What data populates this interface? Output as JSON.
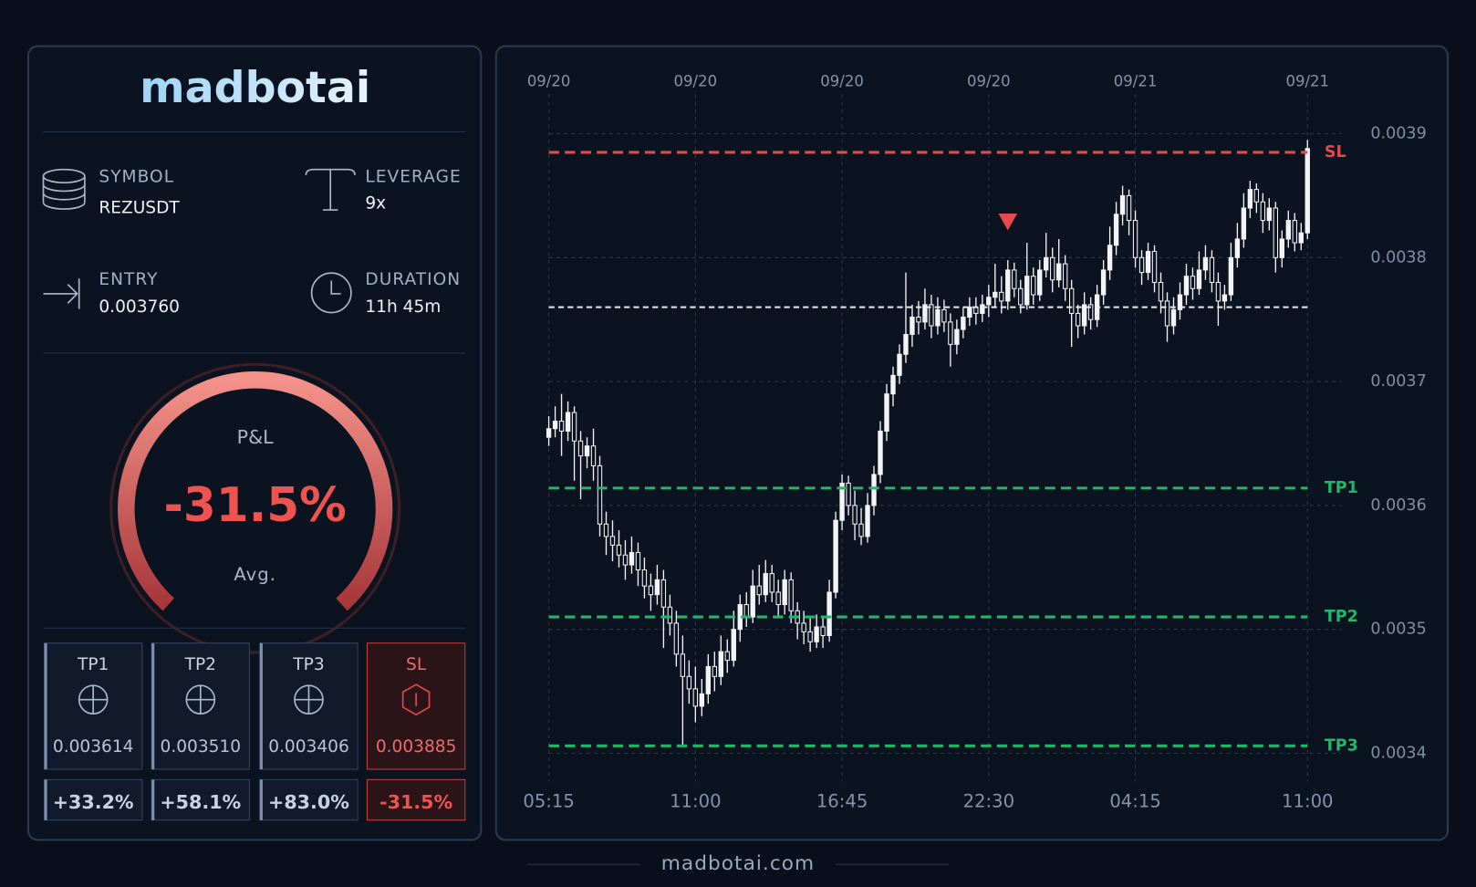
{
  "panel": {
    "brand": "madbotai",
    "symbol_label": "SYMBOL",
    "symbol": "REZUSDT",
    "leverage_label": "LEVERAGE",
    "leverage": "9x",
    "entry_label": "ENTRY",
    "entry": "0.003760",
    "duration_label": "DURATION",
    "duration": "11h 45m",
    "gauge_label": "P&L",
    "gauge_value": "-31.5%",
    "gauge_sub": "Avg.",
    "targets": [
      {
        "name": "TP1",
        "price": "0.003614",
        "pnl": "+33.2%"
      },
      {
        "name": "TP2",
        "price": "0.003510",
        "pnl": "+58.1%"
      },
      {
        "name": "TP3",
        "price": "0.003406",
        "pnl": "+83.0%"
      },
      {
        "name": "SL",
        "price": "0.003885",
        "pnl": "-31.5%"
      }
    ]
  },
  "footer": "madbotai.com",
  "chart_data": {
    "type": "candlestick",
    "grid": true,
    "xlim": [
      0,
      119
    ],
    "xticks": [
      {
        "value": 0,
        "label": "05:15"
      },
      {
        "value": 23,
        "label": "11:00"
      },
      {
        "value": 46,
        "label": "16:45"
      },
      {
        "value": 69,
        "label": "22:30"
      },
      {
        "value": 92,
        "label": "04:15"
      },
      {
        "value": 119,
        "label": "11:00"
      }
    ],
    "x_date_labels": [
      "09/20",
      "09/20",
      "09/20",
      "09/20",
      "09/21",
      "09/21"
    ],
    "ylim": [
      0.0034,
      0.0039
    ],
    "yticks": [
      0.0034,
      0.0035,
      0.0036,
      0.0037,
      0.0038,
      0.0039
    ],
    "candle_color": "#f2f4f7",
    "entry_price": 0.00376,
    "levels": [
      {
        "name": "SL",
        "value": 0.003885,
        "color": "#e5484d"
      },
      {
        "name": "TP1",
        "value": 0.003614,
        "color": "#1fb86a"
      },
      {
        "name": "TP2",
        "value": 0.00351,
        "color": "#1fb86a"
      },
      {
        "name": "TP3",
        "value": 0.003406,
        "color": "#1fb86a"
      }
    ],
    "signal_marker": {
      "x": 72,
      "y": 0.003828,
      "color": "#e5484d"
    },
    "candles": [
      [
        0.003655,
        0.003672,
        0.003648,
        0.003662
      ],
      [
        0.003662,
        0.00368,
        0.003655,
        0.003668
      ],
      [
        0.003668,
        0.00369,
        0.00364,
        0.00366
      ],
      [
        0.00366,
        0.003684,
        0.003652,
        0.003675
      ],
      [
        0.003675,
        0.00368,
        0.00362,
        0.003652
      ],
      [
        0.003652,
        0.00366,
        0.003605,
        0.00364
      ],
      [
        0.00364,
        0.003655,
        0.00363,
        0.003648
      ],
      [
        0.003648,
        0.003662,
        0.00362,
        0.003632
      ],
      [
        0.003632,
        0.00364,
        0.003575,
        0.003585
      ],
      [
        0.003585,
        0.003595,
        0.00356,
        0.003575
      ],
      [
        0.003575,
        0.003588,
        0.003555,
        0.003568
      ],
      [
        0.003568,
        0.00358,
        0.00355,
        0.00356
      ],
      [
        0.00356,
        0.003572,
        0.00354,
        0.003552
      ],
      [
        0.003552,
        0.003575,
        0.003545,
        0.003562
      ],
      [
        0.003562,
        0.00357,
        0.003535,
        0.003548
      ],
      [
        0.003548,
        0.003558,
        0.003525,
        0.003535
      ],
      [
        0.003535,
        0.003545,
        0.003515,
        0.003528
      ],
      [
        0.003528,
        0.003552,
        0.00352,
        0.00354
      ],
      [
        0.00354,
        0.003548,
        0.003485,
        0.003518
      ],
      [
        0.003518,
        0.003528,
        0.003495,
        0.003505
      ],
      [
        0.003505,
        0.003515,
        0.00347,
        0.00348
      ],
      [
        0.00348,
        0.003495,
        0.003407,
        0.003462
      ],
      [
        0.003462,
        0.003475,
        0.00344,
        0.003452
      ],
      [
        0.003452,
        0.00347,
        0.003425,
        0.003438
      ],
      [
        0.003438,
        0.00346,
        0.00343,
        0.003448
      ],
      [
        0.003448,
        0.00348,
        0.00344,
        0.00347
      ],
      [
        0.00347,
        0.003482,
        0.00345,
        0.003462
      ],
      [
        0.003462,
        0.003495,
        0.003455,
        0.003482
      ],
      [
        0.003482,
        0.003492,
        0.003465,
        0.003475
      ],
      [
        0.003475,
        0.003515,
        0.00347,
        0.0035
      ],
      [
        0.0035,
        0.003528,
        0.00349,
        0.00352
      ],
      [
        0.00352,
        0.00353,
        0.003502,
        0.00351
      ],
      [
        0.00351,
        0.003548,
        0.003505,
        0.003535
      ],
      [
        0.003535,
        0.003552,
        0.00352,
        0.003528
      ],
      [
        0.003528,
        0.003556,
        0.003522,
        0.003545
      ],
      [
        0.003545,
        0.003552,
        0.003522,
        0.00353
      ],
      [
        0.00353,
        0.00354,
        0.00351,
        0.00352
      ],
      [
        0.00352,
        0.003548,
        0.003512,
        0.00354
      ],
      [
        0.00354,
        0.003546,
        0.003505,
        0.003515
      ],
      [
        0.003515,
        0.003522,
        0.003492,
        0.003505
      ],
      [
        0.003505,
        0.003515,
        0.003488,
        0.003498
      ],
      [
        0.003498,
        0.00351,
        0.003482,
        0.00349
      ],
      [
        0.00349,
        0.003512,
        0.003485,
        0.003502
      ],
      [
        0.003502,
        0.00351,
        0.003485,
        0.003495
      ],
      [
        0.003495,
        0.00354,
        0.00349,
        0.00353
      ],
      [
        0.00353,
        0.003595,
        0.003525,
        0.003588
      ],
      [
        0.003588,
        0.003625,
        0.00358,
        0.003618
      ],
      [
        0.003618,
        0.003624,
        0.003592,
        0.0036
      ],
      [
        0.0036,
        0.003612,
        0.003572,
        0.003585
      ],
      [
        0.003585,
        0.003598,
        0.003568,
        0.003575
      ],
      [
        0.003575,
        0.00361,
        0.00357,
        0.0036
      ],
      [
        0.0036,
        0.003632,
        0.003592,
        0.003625
      ],
      [
        0.003625,
        0.003668,
        0.003618,
        0.00366
      ],
      [
        0.00366,
        0.003698,
        0.003652,
        0.00369
      ],
      [
        0.00369,
        0.003712,
        0.00368,
        0.003705
      ],
      [
        0.003705,
        0.00373,
        0.003698,
        0.003722
      ],
      [
        0.003722,
        0.003788,
        0.003715,
        0.003738
      ],
      [
        0.003738,
        0.003762,
        0.003728,
        0.003752
      ],
      [
        0.003752,
        0.003765,
        0.003738,
        0.003748
      ],
      [
        0.003748,
        0.003775,
        0.003742,
        0.003762
      ],
      [
        0.003762,
        0.00377,
        0.003735,
        0.003745
      ],
      [
        0.003745,
        0.003768,
        0.003738,
        0.003758
      ],
      [
        0.003758,
        0.003766,
        0.00374,
        0.003748
      ],
      [
        0.003748,
        0.003755,
        0.003712,
        0.00373
      ],
      [
        0.00373,
        0.00375,
        0.003722,
        0.003742
      ],
      [
        0.003742,
        0.00376,
        0.003735,
        0.003752
      ],
      [
        0.003752,
        0.003768,
        0.003745,
        0.00376
      ],
      [
        0.00376,
        0.003768,
        0.003746,
        0.003755
      ],
      [
        0.003755,
        0.00377,
        0.003748,
        0.003762
      ],
      [
        0.003762,
        0.003778,
        0.003752,
        0.003768
      ],
      [
        0.003768,
        0.003795,
        0.00376,
        0.003772
      ],
      [
        0.003772,
        0.003785,
        0.003755,
        0.003765
      ],
      [
        0.003765,
        0.003798,
        0.003758,
        0.00379
      ],
      [
        0.00379,
        0.003796,
        0.003768,
        0.003775
      ],
      [
        0.003775,
        0.003782,
        0.003755,
        0.003762
      ],
      [
        0.003762,
        0.003812,
        0.003758,
        0.003785
      ],
      [
        0.003785,
        0.003792,
        0.003762,
        0.00377
      ],
      [
        0.00377,
        0.003798,
        0.003765,
        0.00379
      ],
      [
        0.00379,
        0.00382,
        0.003784,
        0.0038
      ],
      [
        0.0038,
        0.003808,
        0.003772,
        0.003782
      ],
      [
        0.003782,
        0.003815,
        0.003776,
        0.003795
      ],
      [
        0.003795,
        0.003802,
        0.003765,
        0.003775
      ],
      [
        0.003775,
        0.003782,
        0.003728,
        0.003755
      ],
      [
        0.003755,
        0.003762,
        0.003735,
        0.003745
      ],
      [
        0.003745,
        0.003772,
        0.003738,
        0.003762
      ],
      [
        0.003762,
        0.003768,
        0.003742,
        0.00375
      ],
      [
        0.00375,
        0.003778,
        0.003744,
        0.00377
      ],
      [
        0.00377,
        0.003798,
        0.003762,
        0.00379
      ],
      [
        0.00379,
        0.003825,
        0.003782,
        0.00381
      ],
      [
        0.00381,
        0.003845,
        0.003802,
        0.003835
      ],
      [
        0.003835,
        0.003858,
        0.003826,
        0.00385
      ],
      [
        0.00385,
        0.003855,
        0.003818,
        0.00383
      ],
      [
        0.00383,
        0.003838,
        0.003792,
        0.0038
      ],
      [
        0.0038,
        0.003806,
        0.003778,
        0.003788
      ],
      [
        0.003788,
        0.003812,
        0.003782,
        0.003805
      ],
      [
        0.003805,
        0.00381,
        0.003772,
        0.00378
      ],
      [
        0.00378,
        0.003788,
        0.003755,
        0.003765
      ],
      [
        0.003765,
        0.003772,
        0.003732,
        0.003745
      ],
      [
        0.003745,
        0.003768,
        0.003738,
        0.003758
      ],
      [
        0.003758,
        0.00378,
        0.00375,
        0.00377
      ],
      [
        0.00377,
        0.003795,
        0.003762,
        0.003785
      ],
      [
        0.003785,
        0.003792,
        0.003766,
        0.003775
      ],
      [
        0.003775,
        0.003805,
        0.00377,
        0.00379
      ],
      [
        0.00379,
        0.00381,
        0.003782,
        0.0038
      ],
      [
        0.0038,
        0.003806,
        0.003772,
        0.00378
      ],
      [
        0.00378,
        0.003788,
        0.003745,
        0.003765
      ],
      [
        0.003765,
        0.003778,
        0.003758,
        0.00377
      ],
      [
        0.00377,
        0.003812,
        0.003765,
        0.0038
      ],
      [
        0.0038,
        0.003828,
        0.003792,
        0.003815
      ],
      [
        0.003815,
        0.003852,
        0.003808,
        0.00384
      ],
      [
        0.00384,
        0.003862,
        0.003832,
        0.003855
      ],
      [
        0.003855,
        0.00386,
        0.003836,
        0.003845
      ],
      [
        0.003845,
        0.003852,
        0.00382,
        0.00383
      ],
      [
        0.00383,
        0.003848,
        0.003822,
        0.00384
      ],
      [
        0.00384,
        0.003845,
        0.003788,
        0.0038
      ],
      [
        0.0038,
        0.003822,
        0.003792,
        0.003815
      ],
      [
        0.003815,
        0.003838,
        0.003808,
        0.00383
      ],
      [
        0.00383,
        0.003836,
        0.003805,
        0.003812
      ],
      [
        0.003812,
        0.003828,
        0.003806,
        0.00382
      ],
      [
        0.00382,
        0.003895,
        0.003815,
        0.003888
      ]
    ]
  }
}
